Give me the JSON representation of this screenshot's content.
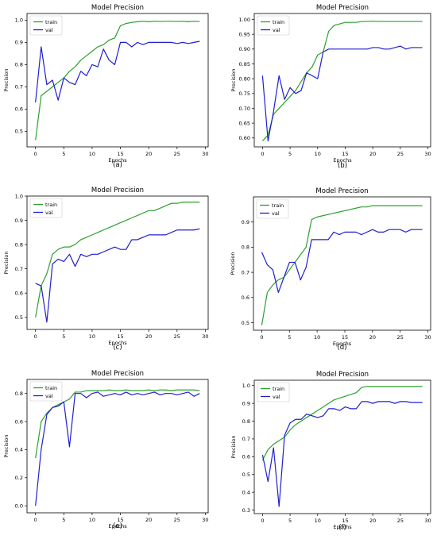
{
  "colors": {
    "train": "#2ca02c",
    "val": "#1f1fd0",
    "axis": "#000000",
    "text": "#000000"
  },
  "chart_data": [
    {
      "type": "line",
      "panel_label": "(a)",
      "title": "Model Precision",
      "xlabel": "Epochs",
      "ylabel": "Precision",
      "xlim": [
        -1.5,
        30.5
      ],
      "ylim": [
        0.43,
        1.03
      ],
      "xticks": [
        0,
        5,
        10,
        15,
        20,
        25,
        30
      ],
      "yticks": [
        0.5,
        0.6,
        0.7,
        0.8,
        0.9,
        1.0
      ],
      "ytick_labels": [
        "0.5",
        "0.6",
        "0.7",
        "0.8",
        "0.9",
        "1.0"
      ],
      "legend": "top-left",
      "grid": false,
      "x": [
        0,
        1,
        2,
        3,
        4,
        5,
        6,
        7,
        8,
        9,
        10,
        11,
        12,
        13,
        14,
        15,
        16,
        17,
        18,
        19,
        20,
        21,
        22,
        23,
        24,
        25,
        26,
        27,
        28,
        29
      ],
      "series": [
        {
          "name": "train",
          "values": [
            0.46,
            0.66,
            0.68,
            0.7,
            0.72,
            0.74,
            0.77,
            0.79,
            0.82,
            0.84,
            0.86,
            0.88,
            0.89,
            0.91,
            0.92,
            0.975,
            0.985,
            0.99,
            0.993,
            0.995,
            0.993,
            0.995,
            0.994,
            0.995,
            0.995,
            0.994,
            0.995,
            0.993,
            0.995,
            0.994
          ]
        },
        {
          "name": "val",
          "values": [
            0.63,
            0.88,
            0.71,
            0.73,
            0.64,
            0.74,
            0.72,
            0.71,
            0.77,
            0.75,
            0.8,
            0.79,
            0.87,
            0.82,
            0.8,
            0.9,
            0.9,
            0.88,
            0.9,
            0.89,
            0.9,
            0.9,
            0.9,
            0.9,
            0.9,
            0.895,
            0.9,
            0.895,
            0.9,
            0.905
          ]
        }
      ]
    },
    {
      "type": "line",
      "panel_label": "(b)",
      "title": "Model Precision",
      "xlabel": "Epochs",
      "ylabel": "Precision",
      "xlim": [
        -1.5,
        30.5
      ],
      "ylim": [
        0.57,
        1.02
      ],
      "xticks": [
        0,
        5,
        10,
        15,
        20,
        25,
        30
      ],
      "yticks": [
        0.6,
        0.65,
        0.7,
        0.75,
        0.8,
        0.85,
        0.9,
        0.95,
        1.0
      ],
      "ytick_labels": [
        "0.60",
        "0.65",
        "0.70",
        "0.75",
        "0.80",
        "0.85",
        "0.90",
        "0.95",
        "1.00"
      ],
      "legend": "top-left",
      "grid": false,
      "x": [
        0,
        1,
        2,
        3,
        4,
        5,
        6,
        7,
        8,
        9,
        10,
        11,
        12,
        13,
        14,
        15,
        16,
        17,
        18,
        19,
        20,
        21,
        22,
        23,
        24,
        25,
        26,
        27,
        28,
        29
      ],
      "series": [
        {
          "name": "train",
          "values": [
            0.59,
            0.61,
            0.68,
            0.7,
            0.72,
            0.74,
            0.76,
            0.79,
            0.82,
            0.84,
            0.88,
            0.89,
            0.96,
            0.98,
            0.985,
            0.99,
            0.99,
            0.99,
            0.993,
            0.993,
            0.994,
            0.993,
            0.993,
            0.993,
            0.993,
            0.993,
            0.993,
            0.993,
            0.993,
            0.993
          ]
        },
        {
          "name": "val",
          "values": [
            0.81,
            0.59,
            0.69,
            0.81,
            0.73,
            0.77,
            0.75,
            0.76,
            0.82,
            0.81,
            0.8,
            0.89,
            0.9,
            0.9,
            0.9,
            0.9,
            0.9,
            0.9,
            0.9,
            0.9,
            0.905,
            0.905,
            0.9,
            0.9,
            0.905,
            0.91,
            0.9,
            0.905,
            0.905,
            0.905
          ]
        }
      ]
    },
    {
      "type": "line",
      "panel_label": "(c)",
      "title": "Model Precision",
      "xlabel": "Epochs",
      "ylabel": "Precision",
      "xlim": [
        -1.5,
        30.5
      ],
      "ylim": [
        0.45,
        1.0
      ],
      "xticks": [
        0,
        5,
        10,
        15,
        20,
        25,
        30
      ],
      "yticks": [
        0.5,
        0.6,
        0.7,
        0.8,
        0.9,
        1.0
      ],
      "ytick_labels": [
        "0.5",
        "0.6",
        "0.7",
        "0.8",
        "0.9",
        "1.0"
      ],
      "legend": "top-left",
      "grid": false,
      "x": [
        0,
        1,
        2,
        3,
        4,
        5,
        6,
        7,
        8,
        9,
        10,
        11,
        12,
        13,
        14,
        15,
        16,
        17,
        18,
        19,
        20,
        21,
        22,
        23,
        24,
        25,
        26,
        27,
        28,
        29
      ],
      "series": [
        {
          "name": "train",
          "values": [
            0.5,
            0.63,
            0.68,
            0.76,
            0.78,
            0.79,
            0.79,
            0.8,
            0.82,
            0.83,
            0.84,
            0.85,
            0.86,
            0.87,
            0.88,
            0.89,
            0.9,
            0.91,
            0.92,
            0.93,
            0.94,
            0.94,
            0.95,
            0.96,
            0.97,
            0.97,
            0.975,
            0.975,
            0.975,
            0.975
          ]
        },
        {
          "name": "val",
          "values": [
            0.64,
            0.63,
            0.48,
            0.72,
            0.74,
            0.73,
            0.76,
            0.71,
            0.76,
            0.75,
            0.76,
            0.76,
            0.77,
            0.78,
            0.79,
            0.78,
            0.78,
            0.82,
            0.82,
            0.83,
            0.84,
            0.84,
            0.84,
            0.84,
            0.85,
            0.86,
            0.86,
            0.86,
            0.86,
            0.865
          ]
        }
      ]
    },
    {
      "type": "line",
      "panel_label": "(d)",
      "title": "Model Precision",
      "xlabel": "Epochs",
      "ylabel": "Precision",
      "xlim": [
        -1.5,
        30.5
      ],
      "ylim": [
        0.47,
        1.0
      ],
      "xticks": [
        0,
        5,
        10,
        15,
        20,
        25,
        30
      ],
      "yticks": [
        0.5,
        0.6,
        0.7,
        0.8,
        0.9
      ],
      "ytick_labels": [
        "0.5",
        "0.6",
        "0.7",
        "0.8",
        "0.9"
      ],
      "legend": "top-left",
      "grid": false,
      "x": [
        0,
        1,
        2,
        3,
        4,
        5,
        6,
        7,
        8,
        9,
        10,
        11,
        12,
        13,
        14,
        15,
        16,
        17,
        18,
        19,
        20,
        21,
        22,
        23,
        24,
        25,
        26,
        27,
        28,
        29
      ],
      "series": [
        {
          "name": "train",
          "values": [
            0.49,
            0.62,
            0.65,
            0.67,
            0.68,
            0.71,
            0.74,
            0.77,
            0.8,
            0.91,
            0.92,
            0.925,
            0.93,
            0.935,
            0.94,
            0.945,
            0.95,
            0.955,
            0.96,
            0.96,
            0.965,
            0.965,
            0.965,
            0.965,
            0.965,
            0.965,
            0.965,
            0.965,
            0.965,
            0.965
          ]
        },
        {
          "name": "val",
          "values": [
            0.78,
            0.73,
            0.71,
            0.62,
            0.68,
            0.74,
            0.74,
            0.67,
            0.72,
            0.83,
            0.83,
            0.83,
            0.83,
            0.86,
            0.85,
            0.86,
            0.86,
            0.86,
            0.85,
            0.86,
            0.87,
            0.86,
            0.86,
            0.87,
            0.87,
            0.87,
            0.86,
            0.87,
            0.87,
            0.87
          ]
        }
      ]
    },
    {
      "type": "line",
      "panel_label": "(e)",
      "title": "Model Precision",
      "xlabel": "Epochs",
      "ylabel": "Precision",
      "xlim": [
        -1.5,
        30.5
      ],
      "ylim": [
        -0.05,
        0.9
      ],
      "xticks": [
        0,
        5,
        10,
        15,
        20,
        25,
        30
      ],
      "yticks": [
        0.0,
        0.2,
        0.4,
        0.6,
        0.8
      ],
      "ytick_labels": [
        "0.0",
        "0.2",
        "0.4",
        "0.6",
        "0.8"
      ],
      "legend": "top-left",
      "grid": false,
      "x": [
        0,
        1,
        2,
        3,
        4,
        5,
        6,
        7,
        8,
        9,
        10,
        11,
        12,
        13,
        14,
        15,
        16,
        17,
        18,
        19,
        20,
        21,
        22,
        23,
        24,
        25,
        26,
        27,
        28,
        29
      ],
      "series": [
        {
          "name": "train",
          "values": [
            0.34,
            0.6,
            0.66,
            0.7,
            0.72,
            0.74,
            0.76,
            0.81,
            0.81,
            0.82,
            0.82,
            0.82,
            0.82,
            0.825,
            0.82,
            0.82,
            0.825,
            0.82,
            0.82,
            0.82,
            0.825,
            0.82,
            0.825,
            0.825,
            0.82,
            0.825,
            0.825,
            0.825,
            0.825,
            0.82
          ]
        },
        {
          "name": "val",
          "values": [
            0.0,
            0.4,
            0.65,
            0.7,
            0.71,
            0.74,
            0.42,
            0.8,
            0.8,
            0.77,
            0.8,
            0.81,
            0.78,
            0.79,
            0.8,
            0.79,
            0.81,
            0.79,
            0.8,
            0.79,
            0.8,
            0.81,
            0.79,
            0.8,
            0.8,
            0.79,
            0.8,
            0.81,
            0.78,
            0.8
          ]
        }
      ]
    },
    {
      "type": "line",
      "panel_label": "(f)",
      "title": "Model Precision",
      "xlabel": "Epochs",
      "ylabel": "Precision",
      "xlim": [
        -1.5,
        30.5
      ],
      "ylim": [
        0.28,
        1.03
      ],
      "xticks": [
        0,
        5,
        10,
        15,
        20,
        25,
        30
      ],
      "yticks": [
        0.3,
        0.4,
        0.5,
        0.6,
        0.7,
        0.8,
        0.9,
        1.0
      ],
      "ytick_labels": [
        "0.3",
        "0.4",
        "0.5",
        "0.6",
        "0.7",
        "0.8",
        "0.9",
        "1.0"
      ],
      "legend": "top-left",
      "grid": false,
      "x": [
        0,
        1,
        2,
        3,
        4,
        5,
        6,
        7,
        8,
        9,
        10,
        11,
        12,
        13,
        14,
        15,
        16,
        17,
        18,
        19,
        20,
        21,
        22,
        23,
        24,
        25,
        26,
        27,
        28,
        29
      ],
      "series": [
        {
          "name": "train",
          "values": [
            0.58,
            0.64,
            0.67,
            0.69,
            0.71,
            0.75,
            0.78,
            0.8,
            0.82,
            0.84,
            0.86,
            0.88,
            0.9,
            0.92,
            0.93,
            0.94,
            0.95,
            0.96,
            0.99,
            0.995,
            0.995,
            0.995,
            0.995,
            0.995,
            0.995,
            0.995,
            0.995,
            0.995,
            0.995,
            0.995
          ]
        },
        {
          "name": "val",
          "values": [
            0.61,
            0.46,
            0.65,
            0.32,
            0.72,
            0.79,
            0.81,
            0.81,
            0.84,
            0.83,
            0.82,
            0.83,
            0.87,
            0.87,
            0.86,
            0.88,
            0.87,
            0.87,
            0.91,
            0.91,
            0.9,
            0.91,
            0.91,
            0.91,
            0.9,
            0.91,
            0.91,
            0.905,
            0.905,
            0.905
          ]
        }
      ]
    }
  ]
}
